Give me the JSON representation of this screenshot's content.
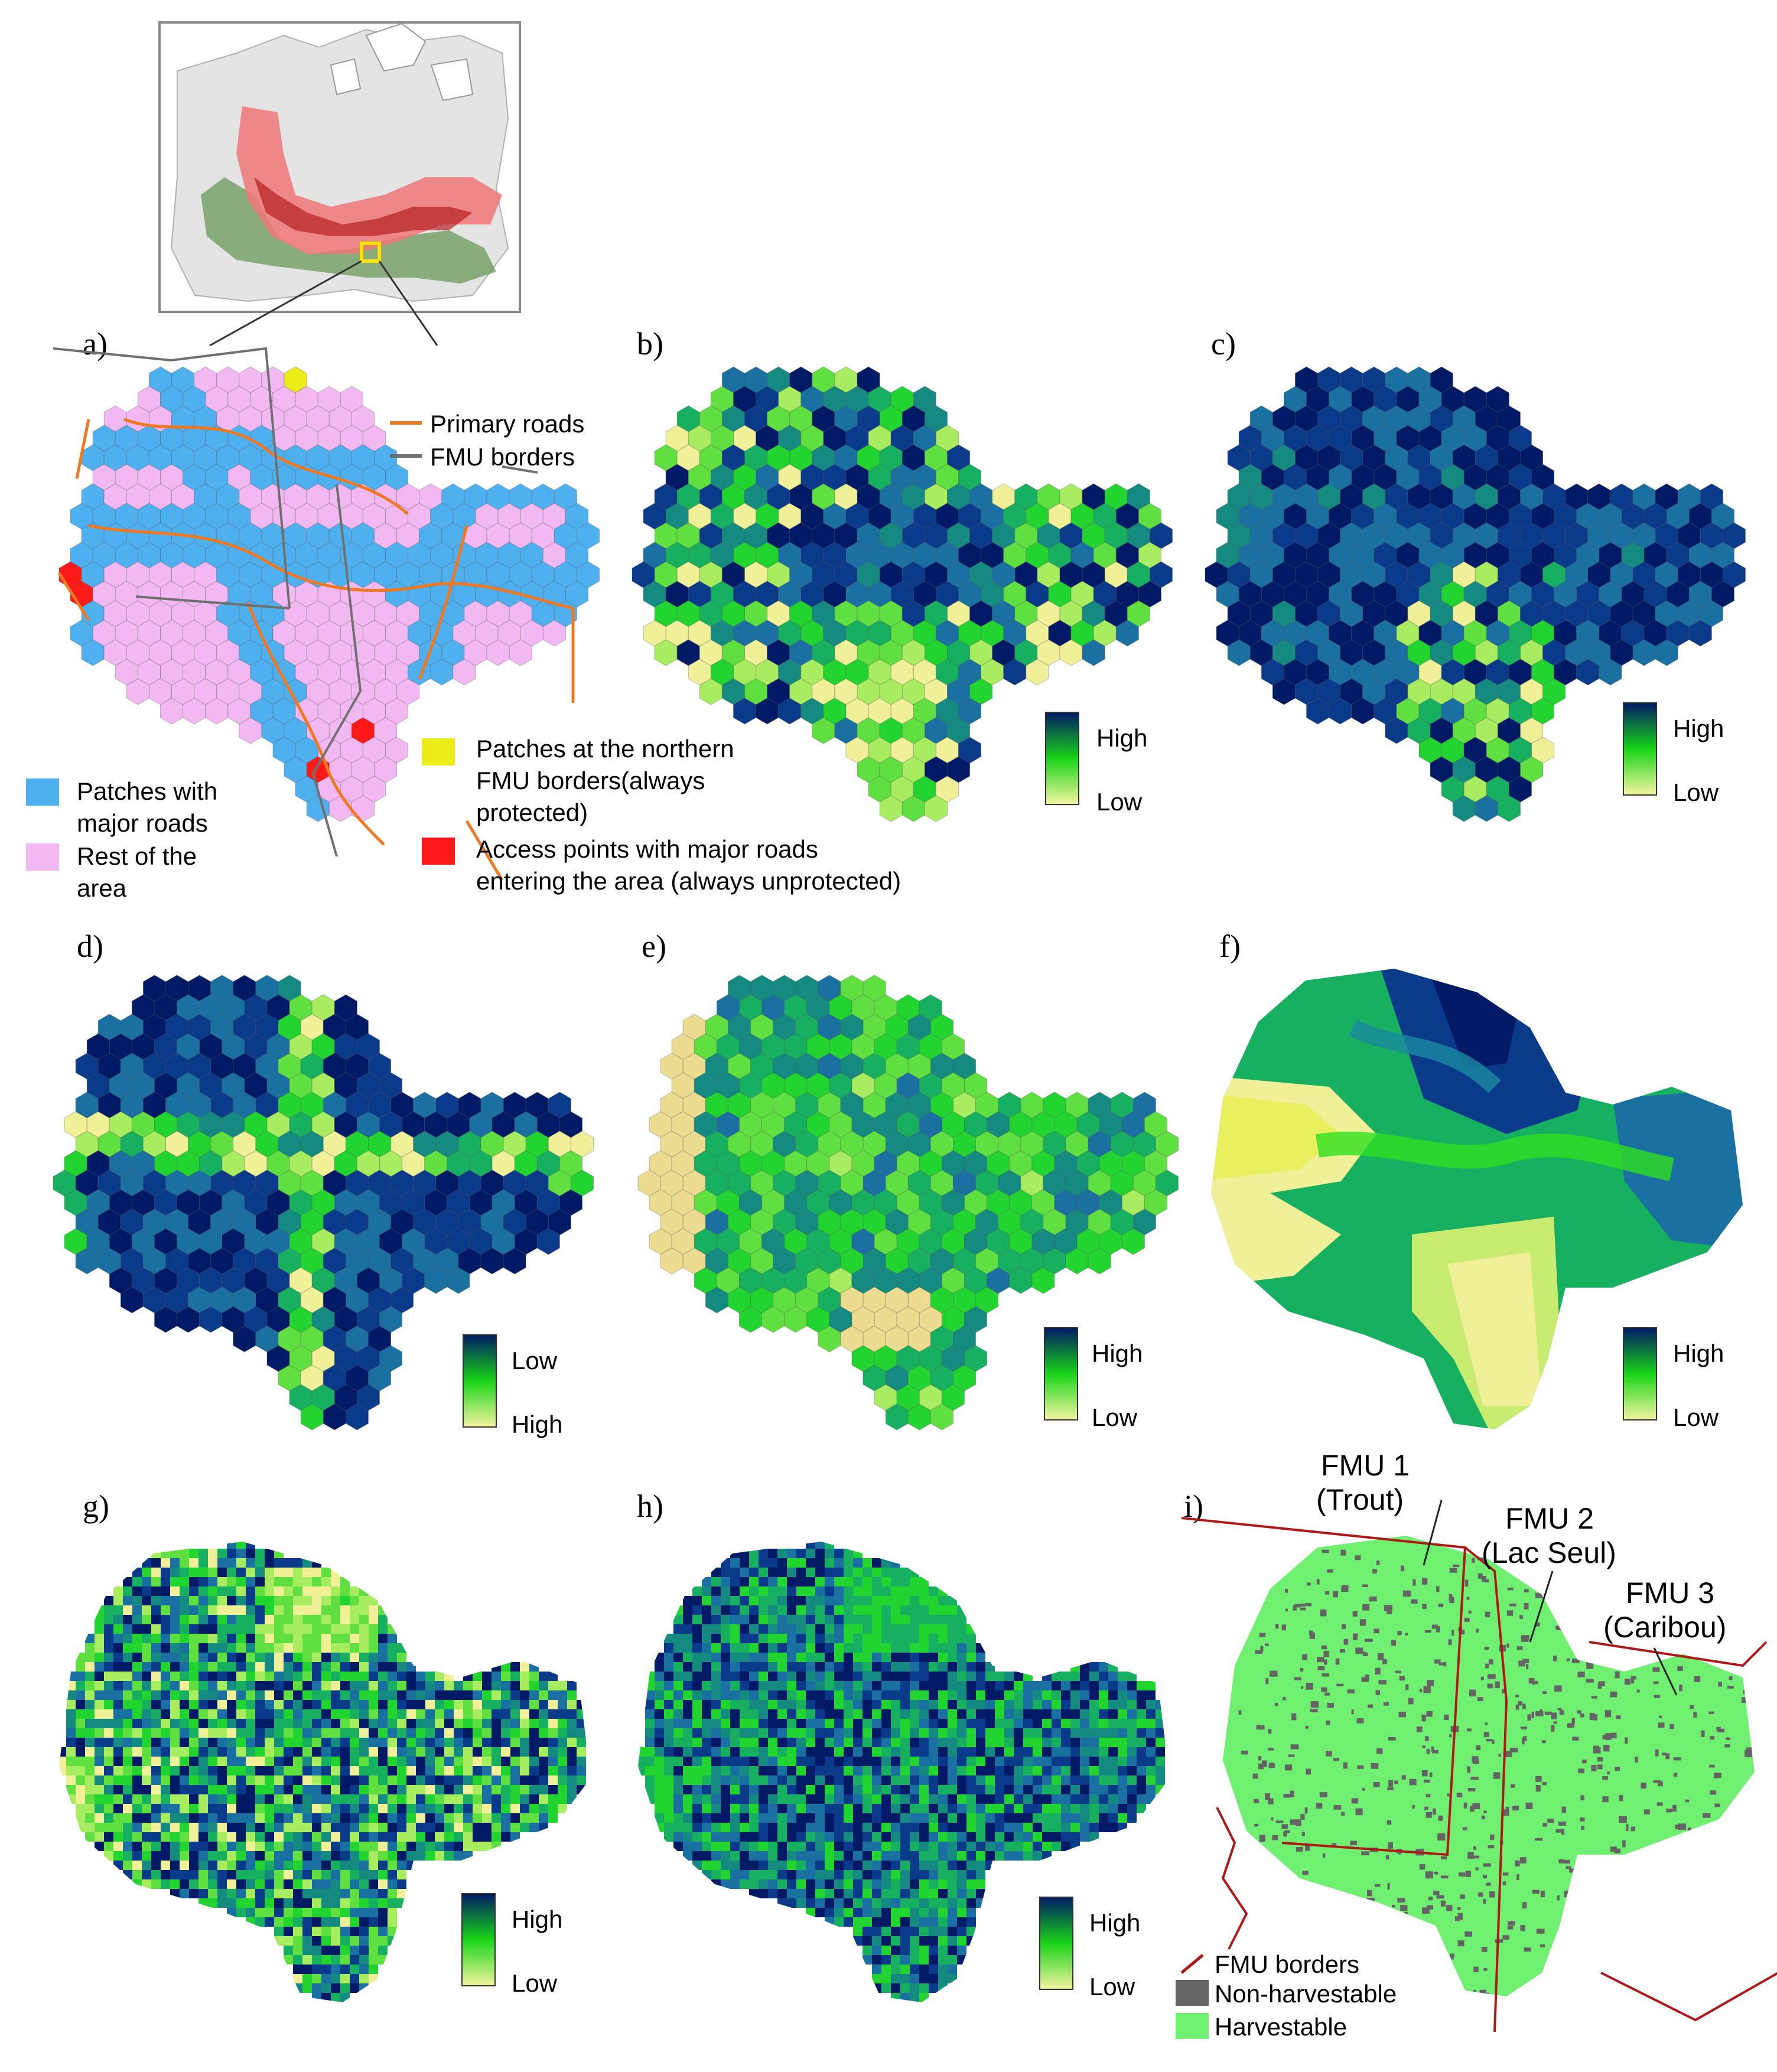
{
  "panels": {
    "a": {
      "label": "a)",
      "legend": {
        "primary_roads": "Primary roads",
        "fmu_borders": "FMU borders",
        "patches_roads_1": "Patches with",
        "patches_roads_2": "major roads",
        "rest_1": "Rest of the",
        "rest_2": "area",
        "northern_1": "Patches at the northern",
        "northern_2": "FMU borders(always",
        "northern_3": "protected)",
        "access_1": "Access points with major roads",
        "access_2": "entering the area (always unprotected)"
      }
    },
    "b": {
      "label": "b)",
      "scale_top": "High",
      "scale_bottom": "Low"
    },
    "c": {
      "label": "c)",
      "scale_top": "High",
      "scale_bottom": "Low"
    },
    "d": {
      "label": "d)",
      "scale_top": "Low",
      "scale_bottom": "High"
    },
    "e": {
      "label": "e)",
      "scale_top": "High",
      "scale_bottom": "Low"
    },
    "f": {
      "label": "f)",
      "scale_top": "High",
      "scale_bottom": "Low"
    },
    "g": {
      "label": "g)",
      "scale_top": "High",
      "scale_bottom": "Low"
    },
    "h": {
      "label": "h)",
      "scale_top": "High",
      "scale_bottom": "Low"
    },
    "i": {
      "label": "i)",
      "fmu1_name": "FMU 1",
      "fmu1_sub": "(Trout)",
      "fmu2_name": "FMU 2",
      "fmu2_sub": "(Lac Seul)",
      "fmu3_name": "FMU 3",
      "fmu3_sub": "(Caribou)",
      "legend_borders": "FMU borders",
      "legend_nonharvest": "Non-harvestable",
      "legend_harvest": "Harvestable"
    }
  },
  "colors": {
    "patch_roads": "#4fb0f0",
    "rest_area": "#f2b8f2",
    "northern_patch": "#ecec18",
    "access_point": "#ff1a1a",
    "road": "#f07820",
    "fmu_border_a": "#707070",
    "fmu_border_i": "#b01818",
    "harvestable": "#70f070",
    "non_harvestable": "#646464",
    "ramp_high": "#001a66",
    "ramp_mid": "#18d418",
    "ramp_low": "#f4f4a0"
  }
}
